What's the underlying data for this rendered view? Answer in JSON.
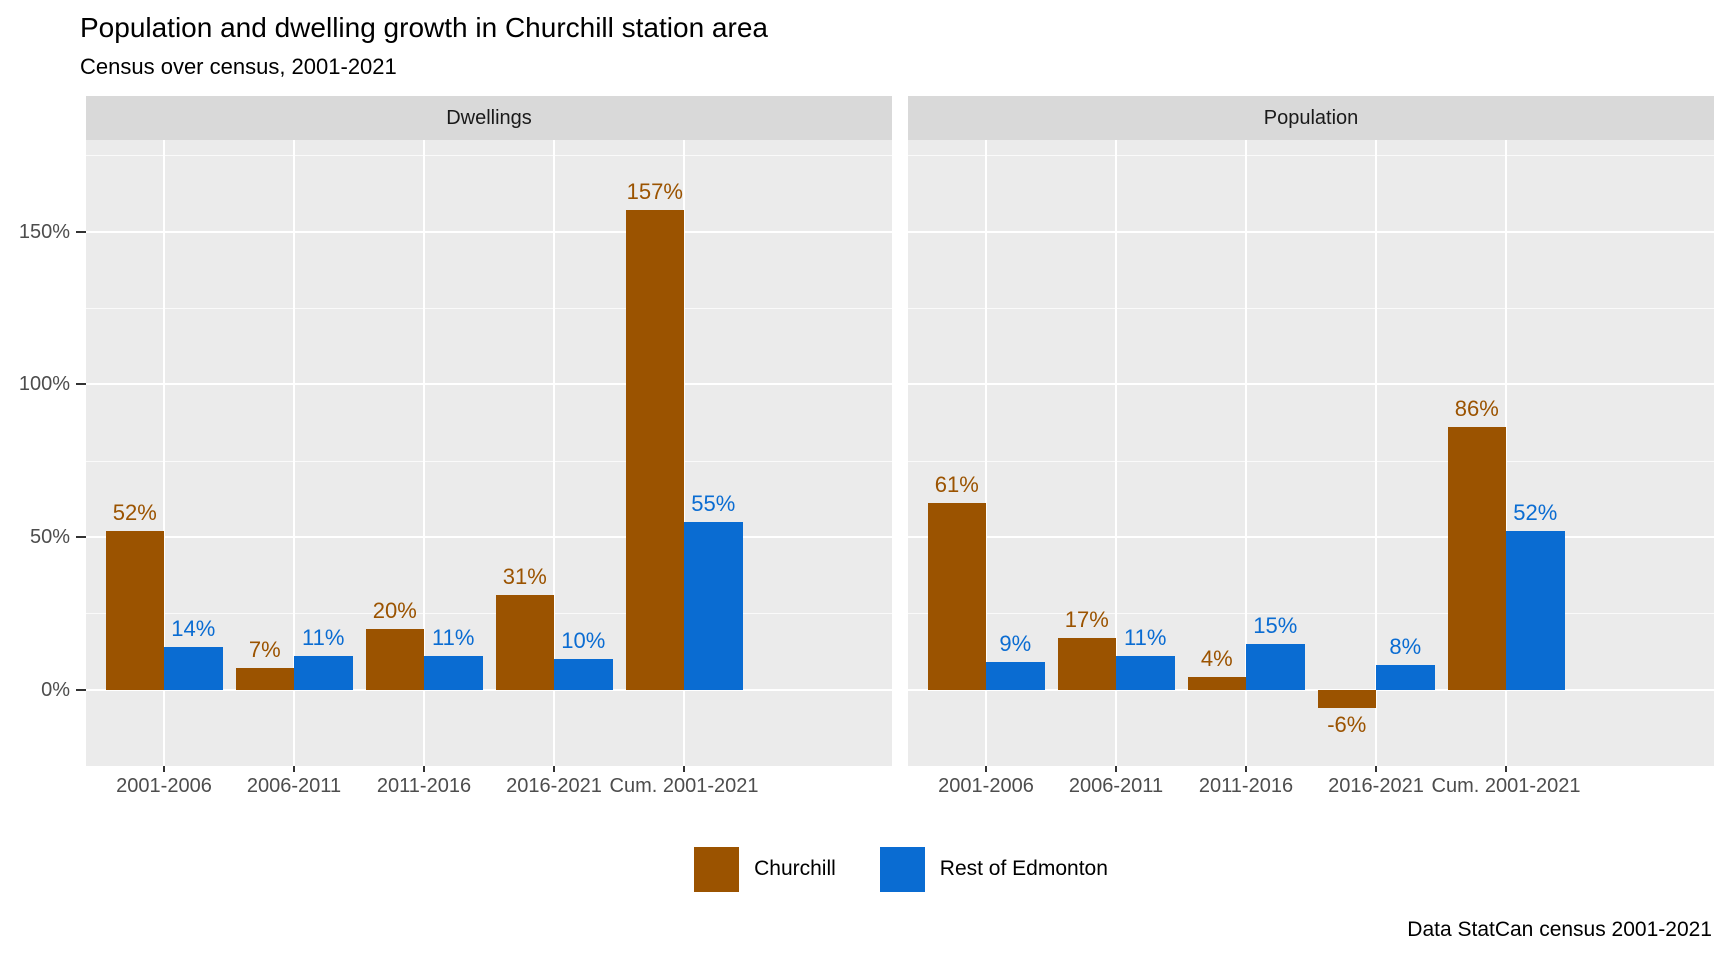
{
  "chart_data": {
    "type": "bar",
    "title": "Population and dwelling growth in Churchill station area",
    "subtitle": "Census over census, 2001-2021",
    "caption": "Data StatCan census 2001-2021",
    "categories": [
      "2001-2006",
      "2006-2011",
      "2011-2016",
      "2016-2021",
      "Cum. 2001-2021"
    ],
    "facets": [
      {
        "label": "Dwellings",
        "series": [
          {
            "name": "Churchill",
            "values": [
              52,
              7,
              20,
              31,
              157
            ]
          },
          {
            "name": "Rest of Edmonton",
            "values": [
              14,
              11,
              11,
              10,
              55
            ]
          }
        ]
      },
      {
        "label": "Population",
        "series": [
          {
            "name": "Churchill",
            "values": [
              61,
              17,
              4,
              -6,
              86
            ]
          },
          {
            "name": "Rest of Edmonton",
            "values": [
              9,
              11,
              15,
              8,
              52
            ]
          }
        ]
      }
    ],
    "series_meta": [
      {
        "name": "Churchill",
        "color": "#9B5300"
      },
      {
        "name": "Rest of Edmonton",
        "color": "#0A6CD2"
      }
    ],
    "value_suffix": "%",
    "y_axis": {
      "ticks": [
        0,
        50,
        100,
        150
      ],
      "tick_labels": [
        "0%",
        "50%",
        "100%",
        "150%"
      ],
      "minor_ticks": [
        25,
        75,
        125,
        175
      ],
      "ylim": [
        -25,
        180
      ]
    },
    "legend": {
      "position": "bottom",
      "entries": [
        "Churchill",
        "Rest of Edmonton"
      ]
    },
    "style": {
      "panel_bg": "#EBEBEB",
      "strip_bg": "#D9D9D9",
      "grid_color": "#FFFFFF",
      "axis_text_color": "#4D4D4D",
      "tick_color": "#333333"
    }
  }
}
